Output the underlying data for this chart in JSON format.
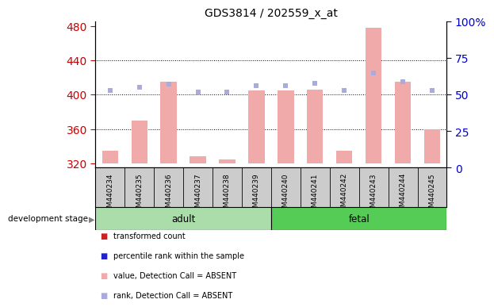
{
  "title": "GDS3814 / 202559_x_at",
  "samples": [
    "GSM440234",
    "GSM440235",
    "GSM440236",
    "GSM440237",
    "GSM440238",
    "GSM440239",
    "GSM440240",
    "GSM440241",
    "GSM440242",
    "GSM440243",
    "GSM440244",
    "GSM440245"
  ],
  "bar_values": [
    335,
    370,
    415,
    328,
    325,
    405,
    405,
    406,
    335,
    478,
    415,
    360
  ],
  "rank_values": [
    53,
    55,
    57,
    52,
    52,
    56,
    56,
    58,
    53,
    65,
    59,
    53
  ],
  "ylim_left": [
    315,
    485
  ],
  "ylim_right": [
    0,
    100
  ],
  "yticks_left": [
    320,
    360,
    400,
    440,
    480
  ],
  "yticks_right": [
    0,
    25,
    50,
    75,
    100
  ],
  "bar_color_absent": "#f0aaaa",
  "rank_color_absent": "#aaaadd",
  "adult_n": 6,
  "fetal_n": 6,
  "adult_color": "#aaddaa",
  "fetal_color": "#55cc55",
  "group_label": "development stage",
  "ylabel_left_color": "#cc0000",
  "ylabel_right_color": "#0000cc",
  "tick_bg_color": "#cccccc",
  "legend_items": [
    {
      "color": "#cc2222",
      "label": "transformed count"
    },
    {
      "color": "#2222cc",
      "label": "percentile rank within the sample"
    },
    {
      "color": "#f0aaaa",
      "label": "value, Detection Call = ABSENT"
    },
    {
      "color": "#aaaadd",
      "label": "rank, Detection Call = ABSENT"
    }
  ]
}
